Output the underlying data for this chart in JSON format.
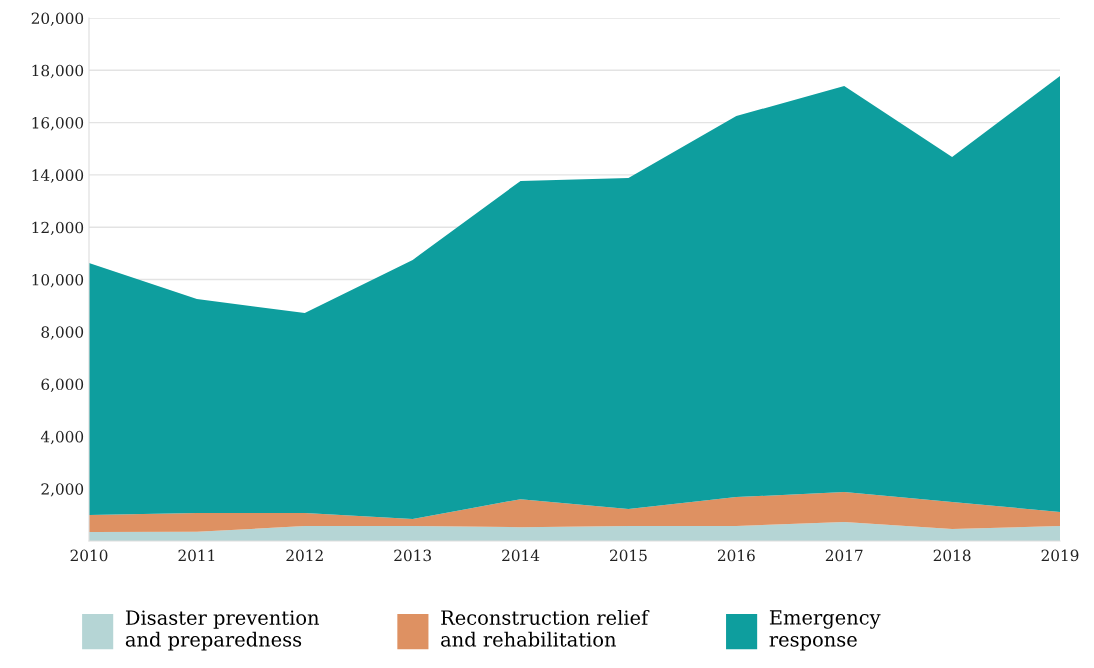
{
  "chart_data": {
    "type": "area",
    "stacked": true,
    "categories": [
      "2010",
      "2011",
      "2012",
      "2013",
      "2014",
      "2015",
      "2016",
      "2017",
      "2018",
      "2019"
    ],
    "series": [
      {
        "name": "Disaster prevention and preparedness",
        "color": "#b5d5d5",
        "values": [
          340,
          350,
          570,
          570,
          530,
          570,
          570,
          730,
          460,
          570
        ]
      },
      {
        "name": "Reconstruction relief and rehabilitation",
        "color": "#de9162",
        "values": [
          650,
          720,
          500,
          270,
          1070,
          650,
          1110,
          1140,
          1030,
          540
        ]
      },
      {
        "name": "Emergency response",
        "color": "#0e9e9e",
        "values": [
          9640,
          8180,
          7650,
          9910,
          12170,
          12660,
          14570,
          15530,
          13190,
          16670
        ]
      }
    ],
    "ylim": [
      0,
      20000
    ],
    "yticks": [
      {
        "value": 0,
        "label": null
      },
      {
        "value": 2000,
        "label": "2,000"
      },
      {
        "value": 4000,
        "label": "4,000"
      },
      {
        "value": 6000,
        "label": "6,000"
      },
      {
        "value": 8000,
        "label": "8,000"
      },
      {
        "value": 10000,
        "label": "10,000"
      },
      {
        "value": 12000,
        "label": "12,000"
      },
      {
        "value": 14000,
        "label": "14,000"
      },
      {
        "value": 16000,
        "label": "16,000"
      },
      {
        "value": 18000,
        "label": "18,000"
      },
      {
        "value": 20000,
        "label": "20,000"
      }
    ],
    "grid": "y",
    "legend": "bottom"
  }
}
